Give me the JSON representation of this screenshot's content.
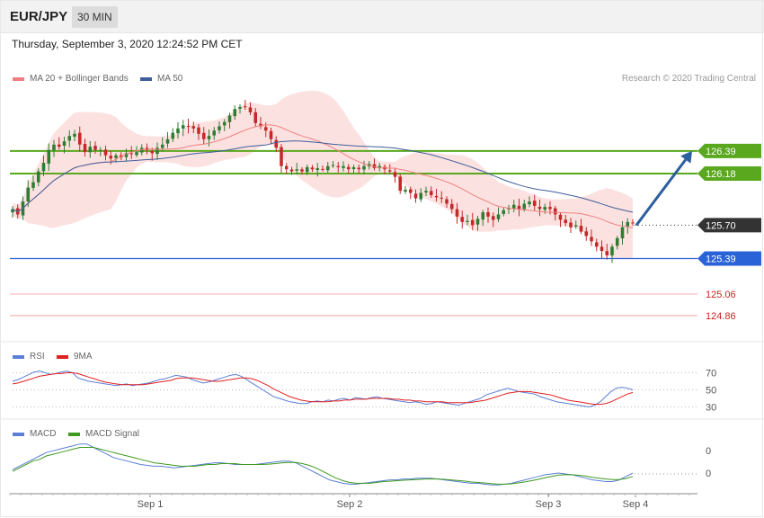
{
  "header": {
    "symbol": "EUR/JPY",
    "timeframe": "30 MIN",
    "datetime": "Thursday, September 3, 2020 12:24:52 PM CET"
  },
  "legend": {
    "ma20": "MA 20 + Bollinger Bands",
    "ma50": "MA 50",
    "copyright": "Research © 2020 Trading Central"
  },
  "colors": {
    "bull": "#2e7d32",
    "bear": "#c62828",
    "ma20": "#f08080",
    "ma50": "#3e5f9a",
    "band_fill": "#fcdcdc",
    "resistance": "#5aa81e",
    "support": "#2a62d8",
    "target_line": "#f5b5b5",
    "target_text": "#cc2222",
    "current": "#333333",
    "arrow": "#2d5e9e",
    "rsi": "#5b7fd6",
    "rsi_ma": "#e02020",
    "macd": "#5b7fd6",
    "macd_signal": "#3e9a1e"
  },
  "chart_data": [
    {
      "type": "candlestick",
      "ylim": [
        124.7,
        127.0
      ],
      "x_ticks": [
        "Sep 1",
        "Sep 2",
        "Sep 3",
        "Sep 4"
      ],
      "levels": [
        {
          "label": "126.39",
          "value": 126.39,
          "kind": "resistance"
        },
        {
          "label": "126.18",
          "value": 126.18,
          "kind": "resistance"
        },
        {
          "label": "125.70",
          "value": 125.7,
          "kind": "current"
        },
        {
          "label": "125.39",
          "value": 125.39,
          "kind": "support"
        },
        {
          "label": "125.06",
          "value": 125.06,
          "kind": "target"
        },
        {
          "label": "124.86",
          "value": 124.86,
          "kind": "target"
        }
      ],
      "forecast_arrow": {
        "from": 125.7,
        "to": 126.39
      },
      "close": [
        125.85,
        125.8,
        125.92,
        126.05,
        126.1,
        126.2,
        126.28,
        126.4,
        126.45,
        126.43,
        126.48,
        126.53,
        126.55,
        126.45,
        126.38,
        126.43,
        126.4,
        126.4,
        126.35,
        126.32,
        126.35,
        126.33,
        126.37,
        126.36,
        126.38,
        126.42,
        126.4,
        126.37,
        126.42,
        126.45,
        126.5,
        126.56,
        126.6,
        126.63,
        126.62,
        126.6,
        126.55,
        126.5,
        126.53,
        126.58,
        126.62,
        126.66,
        126.72,
        126.78,
        126.8,
        126.8,
        126.75,
        126.65,
        126.62,
        126.58,
        126.5,
        126.42,
        126.25,
        126.22,
        126.2,
        126.22,
        126.2,
        126.24,
        126.22,
        126.23,
        126.22,
        126.25,
        126.26,
        126.24,
        126.25,
        126.22,
        126.24,
        126.22,
        126.25,
        126.27,
        126.23,
        126.25,
        126.22,
        126.2,
        126.15,
        126.02,
        126.03,
        126.0,
        125.95,
        126.0,
        126.02,
        125.98,
        125.96,
        125.95,
        125.9,
        125.85,
        125.78,
        125.73,
        125.74,
        125.7,
        125.76,
        125.82,
        125.78,
        125.75,
        125.8,
        125.84,
        125.86,
        125.89,
        125.85,
        125.9,
        125.92,
        125.88,
        125.85,
        125.87,
        125.85,
        125.8,
        125.75,
        125.72,
        125.68,
        125.7,
        125.64,
        125.6,
        125.55,
        125.5,
        125.46,
        125.42,
        125.5,
        125.58,
        125.68,
        125.73,
        125.72
      ]
    },
    {
      "type": "line",
      "series": [
        {
          "name": "RSI",
          "values": [
            60,
            62,
            65,
            68,
            71,
            72,
            70,
            68,
            69,
            71,
            72,
            70,
            64,
            62,
            60,
            59,
            58,
            57,
            56,
            55,
            56,
            57,
            55,
            56,
            57,
            58,
            60,
            62,
            63,
            65,
            67,
            66,
            65,
            62,
            60,
            58,
            59,
            61,
            63,
            65,
            67,
            68,
            66,
            62,
            58,
            54,
            50,
            46,
            42,
            40,
            38,
            36,
            35,
            34,
            34,
            36,
            37,
            36,
            38,
            37,
            39,
            40,
            38,
            41,
            40,
            39,
            41,
            42,
            40,
            39,
            38,
            37,
            36,
            35,
            36,
            35,
            33,
            34,
            36,
            35,
            34,
            33,
            32,
            34,
            36,
            38,
            40,
            44,
            46,
            48,
            50,
            52,
            50,
            48,
            47,
            46,
            45,
            42,
            40,
            38,
            36,
            35,
            34,
            33,
            32,
            31,
            30,
            32,
            36,
            42,
            48,
            52,
            53,
            52,
            50
          ]
        },
        {
          "name": "9MA",
          "values": [
            57,
            58,
            60,
            62,
            64,
            66,
            67,
            68,
            69,
            69,
            70,
            70,
            69,
            67,
            65,
            63,
            61,
            59,
            58,
            57,
            56,
            56,
            56,
            56,
            56,
            57,
            58,
            59,
            60,
            61,
            63,
            64,
            64,
            64,
            63,
            62,
            61,
            60,
            60,
            61,
            62,
            63,
            64,
            64,
            63,
            61,
            58,
            55,
            51,
            48,
            45,
            42,
            40,
            38,
            37,
            36,
            36,
            36,
            36,
            37,
            37,
            38,
            38,
            39,
            39,
            39,
            40,
            40,
            40,
            40,
            39,
            39,
            38,
            38,
            37,
            37,
            36,
            36,
            36,
            36,
            35,
            35,
            35,
            35,
            35,
            36,
            37,
            38,
            40,
            42,
            44,
            46,
            47,
            48,
            48,
            48,
            47,
            46,
            45,
            44,
            42,
            40,
            38,
            37,
            36,
            35,
            34,
            33,
            33,
            34,
            36,
            39,
            42,
            45,
            47
          ]
        }
      ],
      "y_ticks": [
        "70",
        "50",
        "30"
      ],
      "ylim": [
        20,
        80
      ]
    },
    {
      "type": "line",
      "series": [
        {
          "name": "MACD",
          "values": [
            0.02,
            0.04,
            0.06,
            0.08,
            0.1,
            0.12,
            0.13,
            0.14,
            0.15,
            0.16,
            0.17,
            0.17,
            0.15,
            0.13,
            0.11,
            0.09,
            0.08,
            0.07,
            0.06,
            0.05,
            0.045,
            0.04,
            0.04,
            0.035,
            0.03,
            0.035,
            0.04,
            0.045,
            0.05,
            0.055,
            0.06,
            0.06,
            0.055,
            0.05,
            0.05,
            0.05,
            0.05,
            0.055,
            0.06,
            0.065,
            0.07,
            0.07,
            0.06,
            0.04,
            0.02,
            0.0,
            -0.02,
            -0.04,
            -0.05,
            -0.06,
            -0.065,
            -0.065,
            -0.06,
            -0.055,
            -0.05,
            -0.045,
            -0.04,
            -0.04,
            -0.035,
            -0.035,
            -0.03,
            -0.03,
            -0.03,
            -0.035,
            -0.04,
            -0.045,
            -0.05,
            -0.055,
            -0.06,
            -0.06,
            -0.065,
            -0.07,
            -0.07,
            -0.065,
            -0.06,
            -0.05,
            -0.04,
            -0.03,
            -0.02,
            -0.01,
            -0.005,
            0.0,
            -0.005,
            -0.01,
            -0.02,
            -0.03,
            -0.04,
            -0.045,
            -0.05,
            -0.05,
            -0.04,
            -0.02,
            0.0
          ]
        },
        {
          "name": "MACD Signal",
          "values": [
            0.01,
            0.03,
            0.05,
            0.07,
            0.08,
            0.1,
            0.11,
            0.12,
            0.13,
            0.14,
            0.15,
            0.15,
            0.15,
            0.14,
            0.13,
            0.12,
            0.11,
            0.1,
            0.09,
            0.08,
            0.07,
            0.06,
            0.055,
            0.05,
            0.045,
            0.04,
            0.04,
            0.04,
            0.045,
            0.05,
            0.05,
            0.055,
            0.055,
            0.055,
            0.05,
            0.05,
            0.05,
            0.05,
            0.052,
            0.055,
            0.06,
            0.062,
            0.062,
            0.055,
            0.045,
            0.03,
            0.01,
            -0.01,
            -0.03,
            -0.045,
            -0.055,
            -0.06,
            -0.06,
            -0.06,
            -0.055,
            -0.05,
            -0.048,
            -0.045,
            -0.042,
            -0.04,
            -0.038,
            -0.036,
            -0.034,
            -0.035,
            -0.037,
            -0.04,
            -0.043,
            -0.047,
            -0.052,
            -0.055,
            -0.058,
            -0.062,
            -0.065,
            -0.065,
            -0.063,
            -0.058,
            -0.052,
            -0.045,
            -0.037,
            -0.028,
            -0.02,
            -0.012,
            -0.01,
            -0.01,
            -0.013,
            -0.018,
            -0.025,
            -0.03,
            -0.035,
            -0.038,
            -0.038,
            -0.032,
            -0.02
          ]
        }
      ],
      "y_ticks": [
        "0",
        "0"
      ],
      "ylim": [
        -0.1,
        0.2
      ]
    }
  ]
}
